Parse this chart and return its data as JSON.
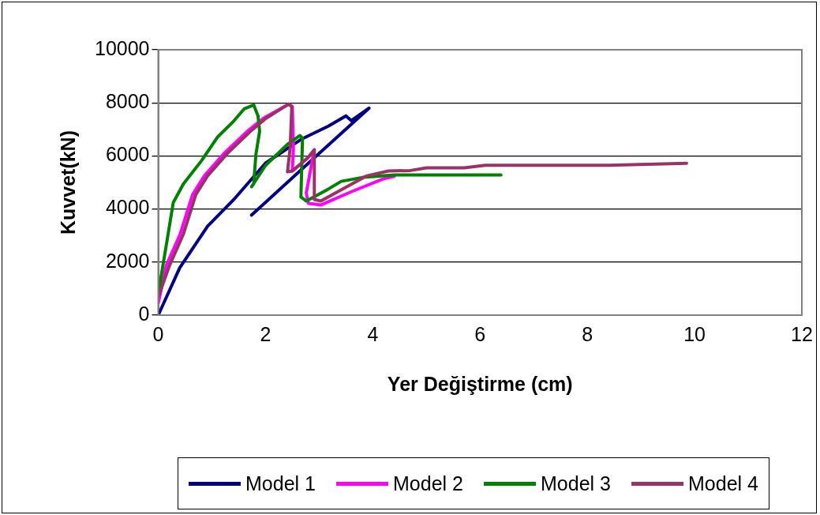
{
  "chart_data": {
    "type": "line",
    "xlabel": "Yer Değiştirme (cm)",
    "ylabel": "Kuvvet(kN)",
    "xlim": [
      0,
      12
    ],
    "xticks": [
      0,
      2,
      4,
      6,
      8,
      10,
      12
    ],
    "ylim": [
      0,
      10000
    ],
    "yticks": [
      0,
      2000,
      4000,
      6000,
      8000,
      10000
    ],
    "grid": "y",
    "legend": "bottom",
    "marker": "none",
    "line_style": "solid",
    "series": [
      {
        "name": "Model 1",
        "color": "#000080",
        "x": [
          0,
          0.02,
          0.4,
          0.92,
          1.41,
          2.0,
          2.66,
          3.17,
          3.5,
          3.6,
          3.93,
          2.91,
          1.74
        ],
        "values": [
          0,
          90,
          1780,
          3350,
          4360,
          5730,
          6620,
          7120,
          7510,
          7330,
          7800,
          5930,
          3770
        ]
      },
      {
        "name": "Model 2",
        "color": "#ff00ff",
        "x": [
          0,
          0.15,
          0.41,
          0.64,
          0.86,
          1.25,
          1.65,
          1.96,
          2.43,
          2.5,
          2.52,
          2.5,
          2.79,
          2.91,
          2.76,
          2.8,
          3.03,
          3.6,
          4.19,
          4.4
        ],
        "values": [
          450,
          1870,
          3060,
          4540,
          5250,
          6140,
          6910,
          7420,
          7950,
          7860,
          6300,
          5430,
          5930,
          6230,
          4600,
          4210,
          4150,
          4650,
          5130,
          5230
        ]
      },
      {
        "name": "Model 3",
        "color": "#008000",
        "x": [
          0,
          0.28,
          0.47,
          0.81,
          1.11,
          1.41,
          1.6,
          1.78,
          1.86,
          1.89,
          1.82,
          1.78,
          1.74,
          2.0,
          2.41,
          2.64,
          2.69,
          2.66,
          2.76,
          3.17,
          3.41,
          3.81,
          4.41,
          6.39
        ],
        "values": [
          800,
          4240,
          4950,
          5830,
          6720,
          7320,
          7770,
          7920,
          7510,
          6930,
          6040,
          4950,
          4840,
          5640,
          6440,
          6770,
          6670,
          4450,
          4300,
          4750,
          5040,
          5190,
          5280,
          5280
        ]
      },
      {
        "name": "Model 4",
        "color": "#993366",
        "x": [
          0,
          0.21,
          0.47,
          0.7,
          0.92,
          1.31,
          1.71,
          2.01,
          2.43,
          2.49,
          2.46,
          2.41,
          2.5,
          2.79,
          2.91,
          2.91,
          3.03,
          3.89,
          4.29,
          4.7,
          5.0,
          5.7,
          6.1,
          8.4,
          9.85
        ],
        "values": [
          680,
          1870,
          3060,
          4540,
          5250,
          6140,
          6910,
          7420,
          7950,
          7860,
          6320,
          5400,
          5430,
          5930,
          6230,
          4360,
          4300,
          5250,
          5430,
          5450,
          5550,
          5550,
          5650,
          5650,
          5720
        ]
      }
    ]
  }
}
